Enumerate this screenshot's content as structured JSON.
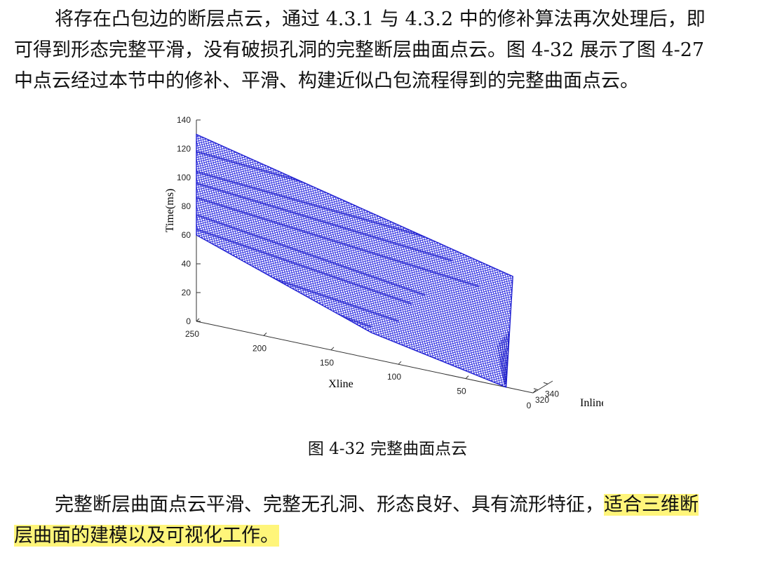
{
  "paragraph1": {
    "lines": [
      "将存在凸包边的断层点云，通过 4.3.1 与 4.3.2 中的修补算法再次处理后，即",
      "可得到形态完整平滑，没有破损孔洞的完整断层曲面点云。图 4-32 展示了图 4-27",
      "中点云经过本节中的修补、平滑、构建近似凸包流程得到的完整曲面点云。"
    ]
  },
  "chart_data": {
    "type": "scatter3d",
    "title": "",
    "xlabel": "Xline",
    "ylabel": "Inline",
    "zlabel": "Time(ms)",
    "xticks": [
      "250",
      "200",
      "150",
      "100",
      "50",
      "0"
    ],
    "yticks": [
      "320",
      "340"
    ],
    "zticks": [
      "0",
      "20",
      "40",
      "60",
      "80",
      "100",
      "120",
      "140"
    ],
    "xlim": [
      0,
      250
    ],
    "ylim": [
      310,
      350
    ],
    "zlim": [
      0,
      140
    ],
    "marker": "point",
    "color": "#2222dd",
    "surface_outline_xline_time": [
      [
        250,
        130
      ],
      [
        60,
        88
      ],
      [
        15,
        78
      ],
      [
        18,
        30
      ],
      [
        20,
        0
      ],
      [
        120,
        18
      ],
      [
        250,
        60
      ]
    ]
  },
  "caption": "图 4-32  完整曲面点云",
  "paragraph2": {
    "line1_plain": "完整断层曲面点云平滑、完整无孔洞、形态良好、具有流形特征，",
    "line1_highlight": "适合三维断",
    "line2_highlight": "层曲面的建模以及可视化工作。"
  },
  "colors": {
    "highlight": "#fff57a",
    "points": "#2222dd",
    "axis": "#333333"
  }
}
